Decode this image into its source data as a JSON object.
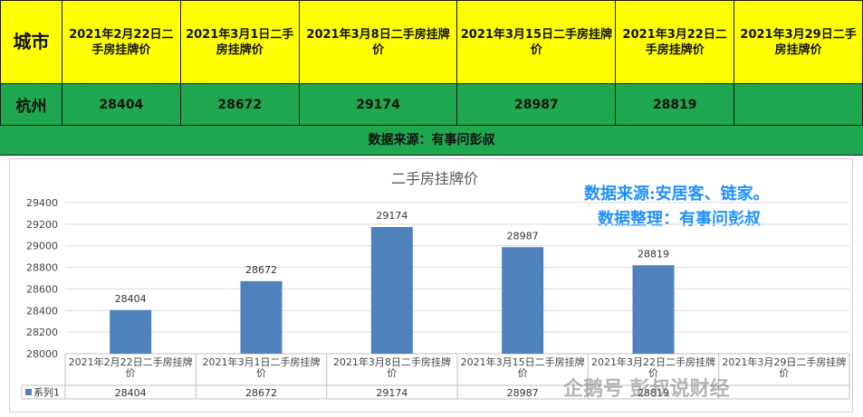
{
  "table": {
    "city_header": "城市",
    "date_headers": [
      "2021年2月22日二手房挂牌价",
      "2021年3月1日二手房挂牌价",
      "2021年3月8日二手房挂牌价",
      "2021年3月15日二手房挂牌价",
      "2021年3月22日二手房挂牌价",
      "2021年3月29日二手房挂牌价"
    ],
    "city": "杭州",
    "prices": [
      "28404",
      "28672",
      "29174",
      "28987",
      "28819",
      ""
    ]
  },
  "source_line": "数据来源：有事问彭叔",
  "notes": {
    "line1": "数据来源:安居客、链家。",
    "line2": "数据整理：有事问彭叔"
  },
  "watermark": "企鹅号 彭叔说财经",
  "chart_data": {
    "type": "bar",
    "title": "二手房挂牌价",
    "categories": [
      "2021年2月22日二手房挂牌价",
      "2021年3月1日二手房挂牌价",
      "2021年3月8日二手房挂牌价",
      "2021年3月15日二手房挂牌价",
      "2021年3月22日二手房挂牌价",
      "2021年3月29日二手房挂牌价"
    ],
    "series": [
      {
        "name": "系列1",
        "values": [
          28404,
          28672,
          29174,
          28987,
          28819,
          null
        ],
        "color": "#4f81bd"
      }
    ],
    "data_labels": [
      "28404",
      "28672",
      "29174",
      "28987",
      "28819",
      ""
    ],
    "ylim": [
      28000,
      29400
    ],
    "yticks": [
      28000,
      28200,
      28400,
      28600,
      28800,
      29000,
      29200,
      29400
    ],
    "data_table": true,
    "grid": true
  }
}
